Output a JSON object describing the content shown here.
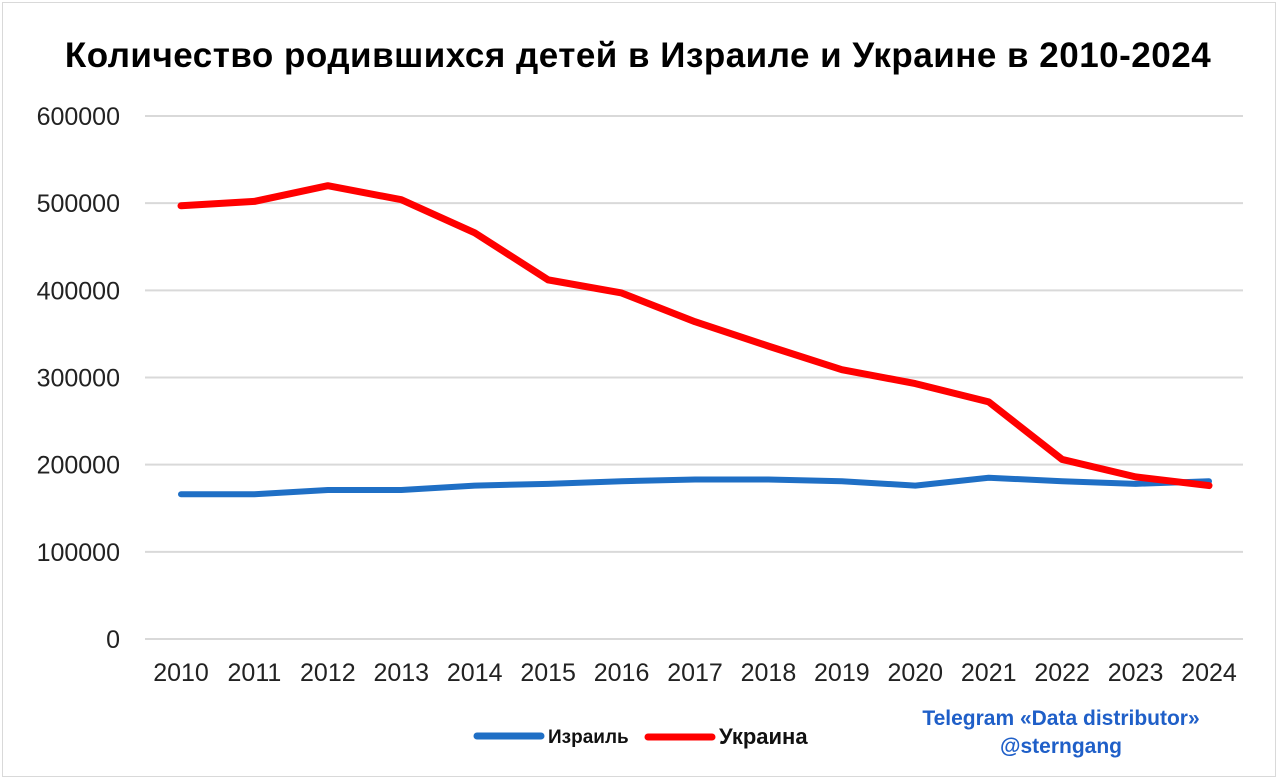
{
  "chart_data": {
    "type": "line",
    "title": "Количество родившихся детей в Израиле и Украине в 2010-2024",
    "categories": [
      "2010",
      "2011",
      "2012",
      "2013",
      "2014",
      "2015",
      "2016",
      "2017",
      "2018",
      "2019",
      "2020",
      "2021",
      "2022",
      "2023",
      "2024"
    ],
    "ylim": [
      0,
      600000
    ],
    "yticks": [
      "0",
      "100000",
      "200000",
      "300000",
      "400000",
      "500000",
      "600000"
    ],
    "grid": true,
    "legend_position": "bottom",
    "series": [
      {
        "name": "Израиль",
        "color": "#1f6fc5",
        "values": [
          166000,
          166000,
          171000,
          171000,
          176000,
          178000,
          181000,
          183000,
          183000,
          181000,
          176000,
          185000,
          181000,
          178000,
          181000
        ]
      },
      {
        "name": "Украина",
        "color": "#ff0000",
        "values": [
          497000,
          502000,
          520000,
          504000,
          466000,
          412000,
          397000,
          364000,
          336000,
          309000,
          293000,
          272000,
          206000,
          186000,
          176000
        ]
      }
    ]
  },
  "credit": {
    "line1": "Telegram «Data distributor»",
    "line2": "@sterngang"
  }
}
